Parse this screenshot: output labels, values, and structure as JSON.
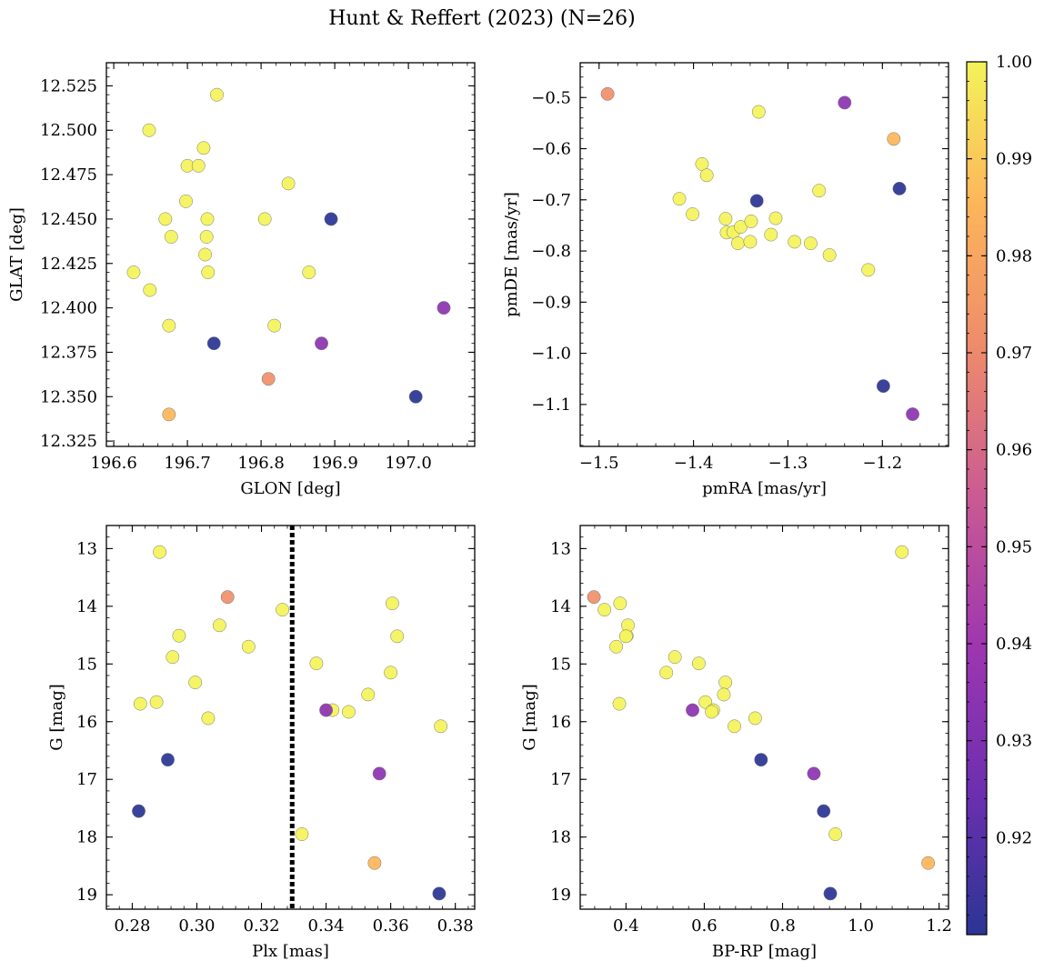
{
  "figure": {
    "title": "Hunt & Reffert (2023) (N=26)"
  },
  "colormap": {
    "name": "plasma",
    "range": [
      0.91,
      1.0
    ],
    "ticks": [
      0.92,
      0.93,
      0.94,
      0.95,
      0.96,
      0.97,
      0.98,
      0.99,
      1.0
    ],
    "tick_labels": [
      "0.92",
      "0.93",
      "0.94",
      "0.95",
      "0.96",
      "0.97",
      "0.98",
      "0.99",
      "1.00"
    ],
    "stops": [
      "#2b3594",
      "#6b2fb0",
      "#9e36b0",
      "#c95a93",
      "#ee8a6c",
      "#fdb65a",
      "#f3f35a"
    ]
  },
  "stars": {
    "prob": [
      1,
      1,
      1,
      1,
      1,
      1,
      1,
      1,
      1,
      1,
      1,
      1,
      1,
      1,
      1,
      1,
      1,
      1,
      1,
      0.91,
      0.91,
      0.91,
      0.935,
      0.935,
      0.972,
      0.985
    ],
    "glon": [
      196.627,
      196.648,
      196.649,
      196.67,
      196.675,
      196.678,
      196.698,
      196.7,
      196.715,
      196.722,
      196.724,
      196.726,
      196.727,
      196.728,
      196.74,
      196.805,
      196.818,
      196.837,
      196.865,
      196.895,
      196.736,
      197.01,
      196.882,
      197.048,
      196.81,
      196.675
    ],
    "glat": [
      12.42,
      12.5,
      12.41,
      12.45,
      12.39,
      12.44,
      12.46,
      12.48,
      12.48,
      12.49,
      12.43,
      12.44,
      12.45,
      12.42,
      12.52,
      12.45,
      12.39,
      12.47,
      12.42,
      12.45,
      12.38,
      12.35,
      12.38,
      12.4,
      12.36,
      12.34
    ],
    "pmra": [
      -1.415,
      -1.401,
      -1.391,
      -1.386,
      -1.366,
      -1.365,
      -1.358,
      -1.353,
      -1.35,
      -1.34,
      -1.339,
      -1.331,
      -1.318,
      -1.313,
      -1.293,
      -1.276,
      -1.267,
      -1.256,
      -1.215,
      -1.182,
      -1.333,
      -1.199,
      -1.24,
      -1.168,
      -1.491,
      -1.188
    ],
    "pmde": [
      -0.698,
      -0.728,
      -0.63,
      -0.652,
      -0.737,
      -0.764,
      -0.763,
      -0.785,
      -0.753,
      -0.782,
      -0.742,
      -0.528,
      -0.768,
      -0.736,
      -0.782,
      -0.785,
      -0.682,
      -0.808,
      -0.837,
      -0.678,
      -0.702,
      -1.064,
      -0.51,
      -1.119,
      -0.493,
      -0.581
    ],
    "plx": [
      0.2885,
      0.2825,
      0.2875,
      0.2925,
      0.2945,
      0.2995,
      0.3035,
      0.307,
      0.316,
      0.3265,
      0.3325,
      0.337,
      0.342,
      0.347,
      0.353,
      0.36,
      0.3605,
      0.362,
      0.3755,
      0.375,
      0.282,
      0.291,
      0.34,
      0.3565,
      0.3095,
      0.355
    ],
    "gmag": [
      13.06,
      15.69,
      15.66,
      14.88,
      14.51,
      15.32,
      15.94,
      14.33,
      14.7,
      14.06,
      17.95,
      14.99,
      15.8,
      15.83,
      15.53,
      15.15,
      13.95,
      14.52,
      16.08,
      18.98,
      17.55,
      16.66,
      15.8,
      16.9,
      13.84,
      18.45
    ],
    "bprp": [
      1.105,
      0.383,
      0.603,
      0.525,
      0.402,
      0.654,
      0.73,
      0.405,
      0.375,
      0.345,
      0.935,
      0.586,
      0.623,
      0.619,
      0.65,
      0.503,
      0.385,
      0.4,
      0.677,
      0.922,
      0.905,
      0.745,
      0.57,
      0.88,
      0.318,
      1.172
    ]
  },
  "chart_data": [
    {
      "type": "scatter",
      "title": "",
      "xlabel": "GLON [deg]",
      "ylabel": "GLAT [deg]",
      "x_field": "glon",
      "y_field": "glat",
      "xlim": [
        196.59,
        197.09
      ],
      "ylim": [
        12.322,
        12.538
      ],
      "x_ticks": [
        196.6,
        196.7,
        196.8,
        196.9,
        197.0
      ],
      "x_tick_labels": [
        "196.6",
        "196.7",
        "196.8",
        "196.9",
        "197.0"
      ],
      "y_ticks": [
        12.325,
        12.35,
        12.375,
        12.4,
        12.425,
        12.45,
        12.475,
        12.5,
        12.525
      ],
      "y_tick_labels": [
        "12.325",
        "12.350",
        "12.375",
        "12.400",
        "12.425",
        "12.450",
        "12.475",
        "12.500",
        "12.525"
      ],
      "y_inverted": false,
      "grid": false,
      "legend": "none"
    },
    {
      "type": "scatter",
      "title": "",
      "xlabel": "pmRA [mas/yr]",
      "ylabel": "pmDE [mas/yr]",
      "x_field": "pmra",
      "y_field": "pmde",
      "xlim": [
        -1.52,
        -1.13
      ],
      "ylim": [
        -1.182,
        -0.432
      ],
      "x_ticks": [
        -1.5,
        -1.4,
        -1.3,
        -1.2
      ],
      "x_tick_labels": [
        "−1.5",
        "−1.4",
        "−1.3",
        "−1.2"
      ],
      "y_ticks": [
        -1.1,
        -1.0,
        -0.9,
        -0.8,
        -0.7,
        -0.6,
        -0.5
      ],
      "y_tick_labels": [
        "−1.1",
        "−1.0",
        "−0.9",
        "−0.8",
        "−0.7",
        "−0.6",
        "−0.5"
      ],
      "y_inverted": false,
      "grid": false,
      "legend": "none"
    },
    {
      "type": "scatter",
      "title": "",
      "xlabel": "Plx [mas]",
      "ylabel": "G [mag]",
      "x_field": "plx",
      "y_field": "gmag",
      "xlim": [
        0.272,
        0.386
      ],
      "ylim": [
        12.6,
        19.25
      ],
      "x_ticks": [
        0.28,
        0.3,
        0.32,
        0.34,
        0.36,
        0.38
      ],
      "x_tick_labels": [
        "0.28",
        "0.30",
        "0.32",
        "0.34",
        "0.36",
        "0.38"
      ],
      "y_ticks": [
        13,
        14,
        15,
        16,
        17,
        18,
        19
      ],
      "y_tick_labels": [
        "13",
        "14",
        "15",
        "16",
        "17",
        "18",
        "19"
      ],
      "y_inverted": true,
      "vline": 0.3295,
      "grid": false,
      "legend": "none"
    },
    {
      "type": "scatter",
      "title": "",
      "xlabel": "BP-RP [mag]",
      "ylabel": "G [mag]",
      "x_field": "bprp",
      "y_field": "gmag",
      "xlim": [
        0.283,
        1.224
      ],
      "ylim": [
        12.6,
        19.25
      ],
      "x_ticks": [
        0.4,
        0.6,
        0.8,
        1.0,
        1.2
      ],
      "x_tick_labels": [
        "0.4",
        "0.6",
        "0.8",
        "1.0",
        "1.2"
      ],
      "y_ticks": [
        13,
        14,
        15,
        16,
        17,
        18,
        19
      ],
      "y_tick_labels": [
        "13",
        "14",
        "15",
        "16",
        "17",
        "18",
        "19"
      ],
      "y_inverted": true,
      "grid": false,
      "legend": "none"
    }
  ]
}
